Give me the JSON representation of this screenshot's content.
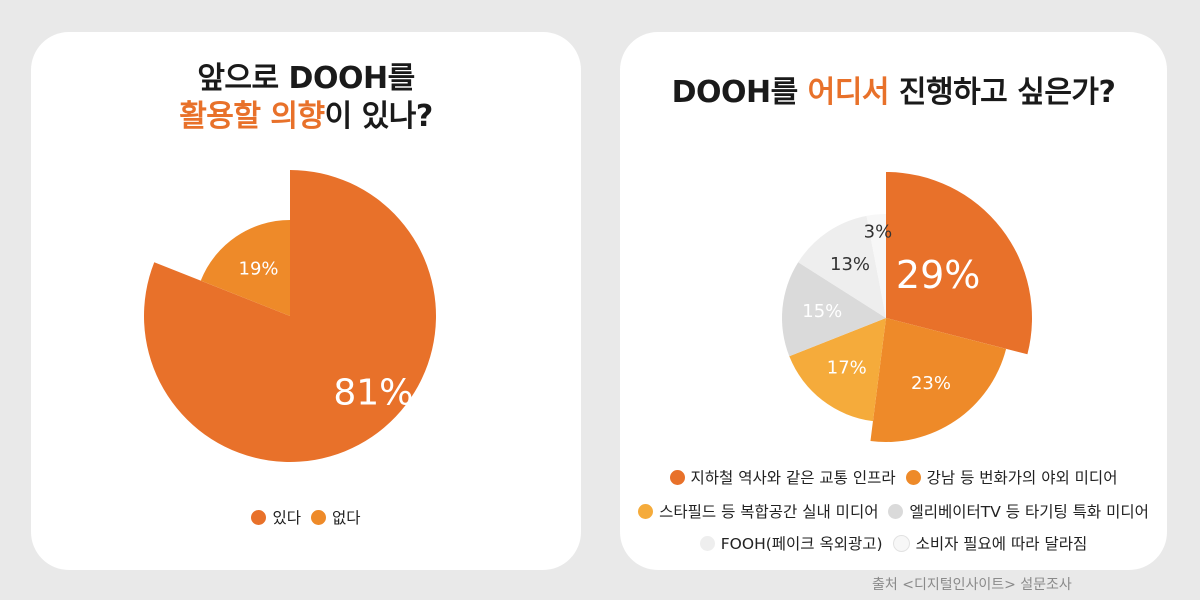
{
  "left_card": {
    "title_line1": "앞으로 DOOH를",
    "title_line2_accent": "활용할 의향",
    "title_line2_rest": "이 있나?"
  },
  "right_card": {
    "title_pre": "DOOH를 ",
    "title_accent": "어디서",
    "title_post": " 진행하고 싶은가?"
  },
  "colors": {
    "orange": "#e8712a",
    "orange_mid": "#ee8a29",
    "amber": "#f5ab3b",
    "gray": "#dadada",
    "light_gray": "#eeeeee",
    "faint": "#f7f7f7"
  },
  "chart_data": [
    {
      "type": "pie",
      "slices": [
        {
          "name": "있다",
          "value": 81,
          "label": "81%",
          "color": "#e8712a"
        },
        {
          "name": "없다",
          "value": 19,
          "label": "19%",
          "color": "#ee8a29"
        }
      ],
      "legend_position": "bottom"
    },
    {
      "type": "pie",
      "slices": [
        {
          "name": "지하철 역사와 같은 교통 인프라",
          "value": 29,
          "label": "29%",
          "color": "#e8712a"
        },
        {
          "name": "강남 등 번화가의 야외 미디어",
          "value": 23,
          "label": "23%",
          "color": "#ee8a29"
        },
        {
          "name": "스타필드 등 복합공간 실내 미디어",
          "value": 17,
          "label": "17%",
          "color": "#f5ab3b"
        },
        {
          "name": "엘리베이터TV 등 타기팅 특화 미디어",
          "value": 15,
          "label": "15%",
          "color": "#dadada"
        },
        {
          "name": "FOOH(페이크 옥외광고)",
          "value": 13,
          "label": "13%",
          "color": "#eeeeee"
        },
        {
          "name": "소비자 필요에 따라 달라짐",
          "value": 3,
          "label": "3%",
          "color": "#f7f7f7"
        }
      ],
      "legend_position": "bottom"
    }
  ],
  "source": "출처 <디지털인사이트> 설문조사"
}
